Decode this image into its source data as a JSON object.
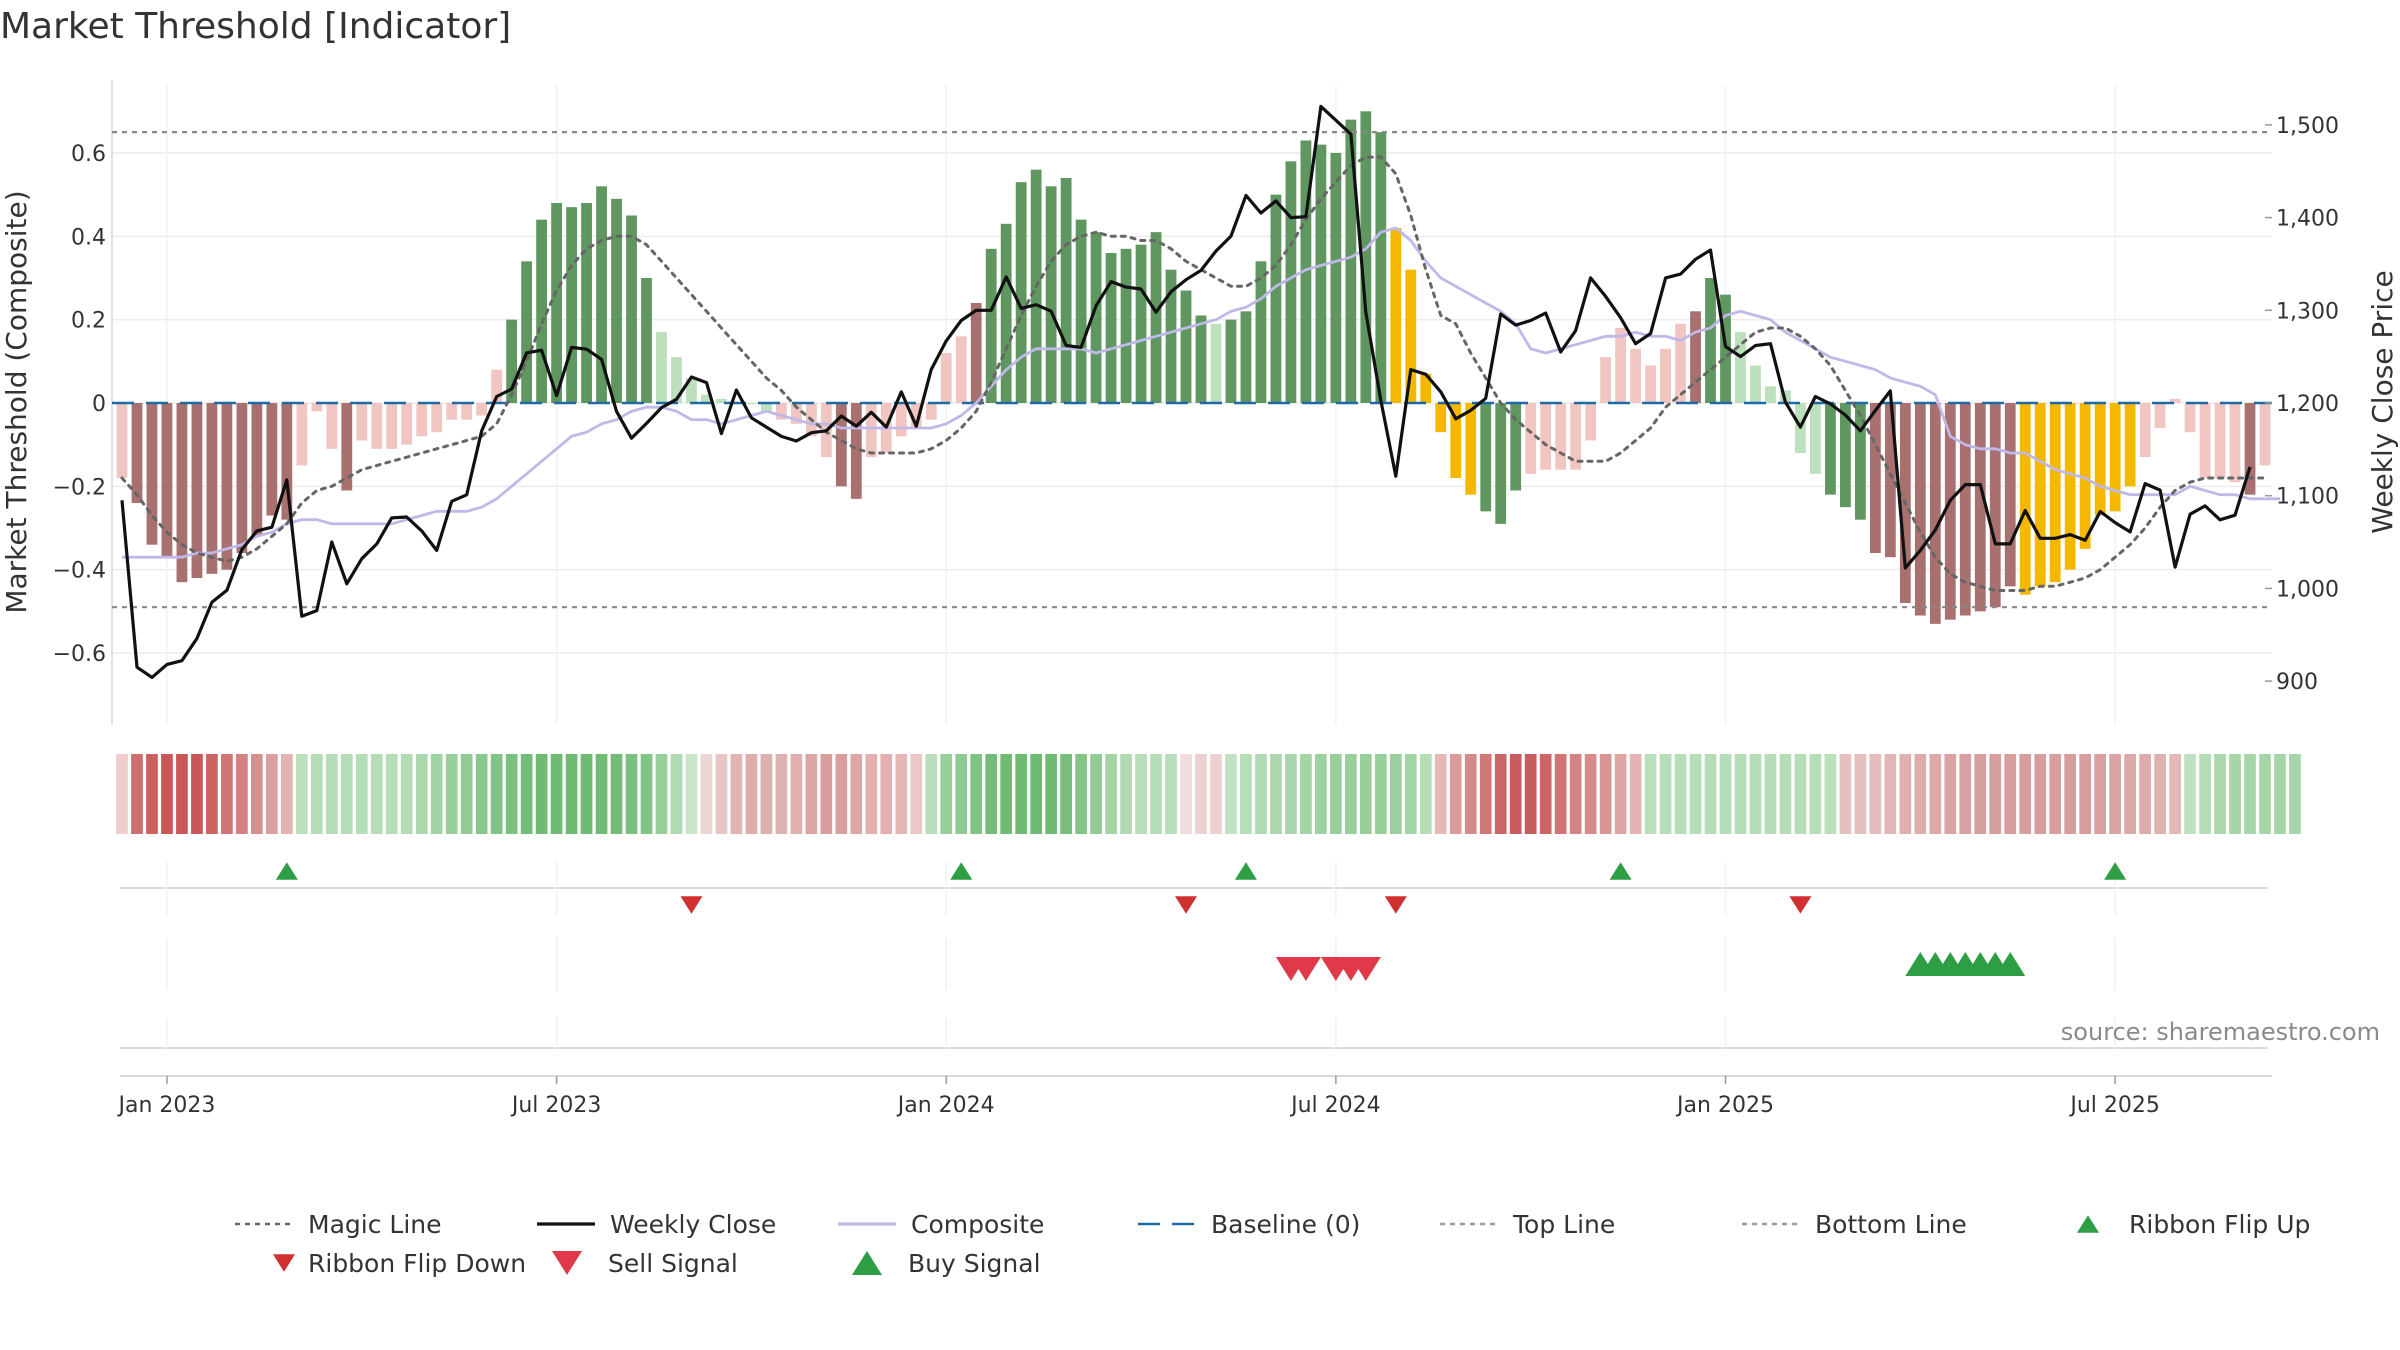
{
  "chart_data": {
    "type": "bar",
    "title": "Market Threshold [Indicator]",
    "ylabel_left": "Market Threshold (Composite)",
    "ylabel_right": "Weekly Close Price",
    "source": "source: sharemaestro.com",
    "ylim_left": [
      -0.78,
      0.78
    ],
    "ylim_right": [
      858,
      1535
    ],
    "left_ticks": [
      {
        "value": 0.6,
        "label": "0.6"
      },
      {
        "value": 0.4,
        "label": "0.4"
      },
      {
        "value": 0.2,
        "label": "0.2"
      },
      {
        "value": 0,
        "label": "0"
      },
      {
        "value": -0.2,
        "label": "−0.2"
      },
      {
        "value": -0.4,
        "label": "−0.4"
      },
      {
        "value": -0.6,
        "label": "−0.6"
      }
    ],
    "right_ticks": [
      {
        "value": 1500,
        "label": "1,500"
      },
      {
        "value": 1400,
        "label": "1,400"
      },
      {
        "value": 1300,
        "label": "1,300"
      },
      {
        "value": 1200,
        "label": "1,200"
      },
      {
        "value": 1100,
        "label": "1,100"
      },
      {
        "value": 1000,
        "label": "1,000"
      },
      {
        "value": 900,
        "label": "900"
      }
    ],
    "x_ticks": [
      {
        "week": 3,
        "label": "Jan 2023"
      },
      {
        "week": 29,
        "label": "Jul 2023"
      },
      {
        "week": 55,
        "label": "Jan 2024"
      },
      {
        "week": 81,
        "label": "Jul 2024"
      },
      {
        "week": 107,
        "label": "Jan 2025"
      },
      {
        "week": 133,
        "label": "Jul 2025"
      }
    ],
    "week_range": [
      0,
      143
    ],
    "top_line": 0.65,
    "bottom_line": -0.49,
    "baseline": 0,
    "composite_bars": [
      -0.18,
      -0.24,
      -0.34,
      -0.37,
      -0.43,
      -0.42,
      -0.41,
      -0.4,
      -0.36,
      -0.32,
      -0.27,
      -0.28,
      -0.15,
      -0.02,
      -0.11,
      -0.21,
      -0.09,
      -0.11,
      -0.11,
      -0.1,
      -0.08,
      -0.07,
      -0.04,
      -0.04,
      -0.03,
      0.08,
      0.2,
      0.34,
      0.44,
      0.48,
      0.47,
      0.48,
      0.52,
      0.49,
      0.45,
      0.3,
      0.17,
      0.11,
      0.06,
      0.02,
      0.01,
      0,
      0,
      -0.02,
      -0.04,
      -0.05,
      -0.08,
      -0.13,
      -0.2,
      -0.23,
      -0.13,
      -0.12,
      -0.08,
      -0.06,
      -0.04,
      0.12,
      0.16,
      0.24,
      0.37,
      0.43,
      0.53,
      0.56,
      0.52,
      0.54,
      0.44,
      0.41,
      0.36,
      0.37,
      0.38,
      0.41,
      0.32,
      0.27,
      0.21,
      0.19,
      0.2,
      0.22,
      0.34,
      0.5,
      0.58,
      0.63,
      0.62,
      0.6,
      0.68,
      0.7,
      0.65,
      0.42,
      0.32,
      0.07,
      -0.07,
      -0.18,
      -0.22,
      -0.26,
      -0.29,
      -0.21,
      -0.17,
      -0.16,
      -0.16,
      -0.16,
      -0.09,
      0.11,
      0.18,
      0.13,
      0.09,
      0.13,
      0.19,
      0.22,
      0.3,
      0.26,
      0.17,
      0.09,
      0.04,
      0.03,
      -0.12,
      -0.17,
      -0.22,
      -0.25,
      -0.28,
      -0.36,
      -0.37,
      -0.48,
      -0.51,
      -0.53,
      -0.52,
      -0.51,
      -0.5,
      -0.49,
      -0.44,
      -0.46,
      -0.44,
      -0.43,
      -0.4,
      -0.35,
      -0.27,
      -0.26,
      -0.2,
      -0.13,
      -0.06,
      0.01,
      -0.07,
      -0.18,
      -0.18,
      -0.19,
      -0.22,
      -0.15
    ],
    "bar_color_codes": "ddddddddddddddddddddddddddGGGGGGGGGGGGGGGGGGddddddddddddddGGGGGGGGGGGGGGGGGGGGGGGGGGGYYYYYYGGGddddddddddddGGGGGGGGGGGddddddddddYYYYYYYYdddddddddddddddGGGGGGGGG",
    "bar_colors": {
      "G": "#4f8c4f",
      "d": "#a06060",
      "Y": "#f5b800"
    },
    "weekly_close": [
      1095,
      915,
      904,
      918,
      922,
      946,
      985,
      998,
      1042,
      1062,
      1066,
      1117,
      970,
      976,
      1050,
      1005,
      1032,
      1048,
      1076,
      1077,
      1062,
      1041,
      1094,
      1101,
      1170,
      1207,
      1215,
      1254,
      1257,
      1208,
      1260,
      1258,
      1247,
      1191,
      1162,
      1178,
      1195,
      1204,
      1228,
      1222,
      1167,
      1214,
      1184,
      1174,
      1164,
      1159,
      1168,
      1170,
      1186,
      1175,
      1190,
      1174,
      1212,
      1175,
      1236,
      1267,
      1289,
      1300,
      1300,
      1336,
      1302,
      1306,
      1299,
      1262,
      1260,
      1305,
      1331,
      1325,
      1323,
      1298,
      1320,
      1333,
      1343,
      1364,
      1380,
      1424,
      1405,
      1418,
      1400,
      1401,
      1520,
      1505,
      1490,
      1298,
      1203,
      1121,
      1236,
      1231,
      1212,
      1183,
      1192,
      1205,
      1296,
      1284,
      1289,
      1297,
      1255,
      1278,
      1335,
      1315,
      1292,
      1264,
      1275,
      1335,
      1339,
      1355,
      1365,
      1261,
      1250,
      1262,
      1264,
      1201,
      1174,
      1207,
      1199,
      1187,
      1170,
      1192,
      1213,
      1022,
      1041,
      1063,
      1095,
      1112,
      1112,
      1048,
      1048,
      1084,
      1054,
      1054,
      1058,
      1052,
      1083,
      1071,
      1061,
      1113,
      1106,
      1023,
      1080,
      1089,
      1074,
      1079,
      1131
    ],
    "magic_line": [
      -0.18,
      -0.22,
      -0.27,
      -0.31,
      -0.34,
      -0.36,
      -0.37,
      -0.38,
      -0.37,
      -0.35,
      -0.32,
      -0.29,
      -0.24,
      -0.21,
      -0.2,
      -0.18,
      -0.16,
      -0.15,
      -0.14,
      -0.13,
      -0.12,
      -0.11,
      -0.1,
      -0.09,
      -0.08,
      -0.05,
      0.02,
      0.1,
      0.19,
      0.27,
      0.33,
      0.37,
      0.39,
      0.4,
      0.4,
      0.38,
      0.34,
      0.3,
      0.26,
      0.22,
      0.18,
      0.14,
      0.1,
      0.06,
      0.03,
      -0.01,
      -0.04,
      -0.07,
      -0.09,
      -0.11,
      -0.12,
      -0.12,
      -0.12,
      -0.12,
      -0.11,
      -0.09,
      -0.06,
      -0.02,
      0.05,
      0.13,
      0.21,
      0.28,
      0.34,
      0.38,
      0.4,
      0.41,
      0.4,
      0.4,
      0.39,
      0.39,
      0.37,
      0.34,
      0.32,
      0.3,
      0.28,
      0.28,
      0.3,
      0.33,
      0.38,
      0.44,
      0.49,
      0.53,
      0.57,
      0.59,
      0.59,
      0.55,
      0.45,
      0.32,
      0.21,
      0.19,
      0.12,
      0.06,
      0,
      -0.04,
      -0.07,
      -0.1,
      -0.12,
      -0.14,
      -0.14,
      -0.14,
      -0.12,
      -0.09,
      -0.06,
      -0.01,
      0.02,
      0.05,
      0.08,
      0.11,
      0.14,
      0.17,
      0.18,
      0.18,
      0.16,
      0.13,
      0.09,
      0.03,
      -0.03,
      -0.1,
      -0.17,
      -0.24,
      -0.31,
      -0.37,
      -0.41,
      -0.43,
      -0.44,
      -0.45,
      -0.45,
      -0.45,
      -0.44,
      -0.44,
      -0.43,
      -0.42,
      -0.4,
      -0.37,
      -0.34,
      -0.3,
      -0.25,
      -0.21,
      -0.19,
      -0.18,
      -0.18,
      -0.18,
      -0.18,
      -0.18
    ],
    "composite_line": [
      -0.37,
      -0.37,
      -0.37,
      -0.37,
      -0.37,
      -0.36,
      -0.36,
      -0.35,
      -0.34,
      -0.32,
      -0.31,
      -0.29,
      -0.28,
      -0.28,
      -0.29,
      -0.29,
      -0.29,
      -0.29,
      -0.29,
      -0.28,
      -0.27,
      -0.26,
      -0.26,
      -0.26,
      -0.25,
      -0.23,
      -0.2,
      -0.17,
      -0.14,
      -0.11,
      -0.08,
      -0.07,
      -0.05,
      -0.04,
      -0.02,
      -0.01,
      -0.01,
      -0.02,
      -0.04,
      -0.04,
      -0.05,
      -0.04,
      -0.03,
      -0.02,
      -0.03,
      -0.04,
      -0.05,
      -0.05,
      -0.06,
      -0.06,
      -0.06,
      -0.06,
      -0.06,
      -0.06,
      -0.06,
      -0.05,
      -0.03,
      0,
      0.04,
      0.08,
      0.11,
      0.13,
      0.13,
      0.13,
      0.13,
      0.12,
      0.13,
      0.14,
      0.15,
      0.16,
      0.17,
      0.18,
      0.19,
      0.2,
      0.22,
      0.23,
      0.25,
      0.28,
      0.3,
      0.32,
      0.33,
      0.34,
      0.35,
      0.37,
      0.41,
      0.42,
      0.39,
      0.34,
      0.3,
      0.28,
      0.26,
      0.24,
      0.22,
      0.19,
      0.13,
      0.12,
      0.13,
      0.14,
      0.15,
      0.16,
      0.16,
      0.17,
      0.16,
      0.16,
      0.15,
      0.17,
      0.18,
      0.21,
      0.22,
      0.21,
      0.2,
      0.17,
      0.15,
      0.13,
      0.11,
      0.1,
      0.09,
      0.08,
      0.06,
      0.05,
      0.04,
      0.02,
      -0.08,
      -0.1,
      -0.11,
      -0.11,
      -0.12,
      -0.12,
      -0.14,
      -0.16,
      -0.17,
      -0.18,
      -0.2,
      -0.21,
      -0.22,
      -0.22,
      -0.22,
      -0.22,
      -0.2,
      -0.21,
      -0.22,
      -0.22,
      -0.23,
      -0.23,
      -0.23
    ],
    "ribbon_colors": [
      "#f0cccc",
      "#cd6e6e",
      "#cb6060",
      "#c85858",
      "#c85858",
      "#c85858",
      "#cc6464",
      "#d07474",
      "#d38080",
      "#d78e8e",
      "#dc9f9f",
      "#e3b3b3",
      "#b9dfbb",
      "#b5ddb6",
      "#b5ddb6",
      "#b5ddb6",
      "#b5ddb6",
      "#b5ddb6",
      "#b5ddb6",
      "#b3dcb5",
      "#aad8ac",
      "#a0d3a3",
      "#98cf9b",
      "#91cb94",
      "#8ac78d",
      "#82c386",
      "#7ac07e",
      "#72bc77",
      "#6fbb74",
      "#6fbb74",
      "#6fbb74",
      "#6fbb74",
      "#6fbb74",
      "#74bd78",
      "#7ac07e",
      "#82c486",
      "#98cf9b",
      "#b0dab2",
      "#c8e5c9",
      "#ecd5d5",
      "#e8c6c6",
      "#e2b3b3",
      "#dfabab",
      "#ddb0b0",
      "#dfb2b2",
      "#e0b0b0",
      "#dba5a5",
      "#d89e9e",
      "#d99e9e",
      "#dea7a7",
      "#e2b0b0",
      "#e2b0b0",
      "#e4b6b6",
      "#eac8c8",
      "#b8dfba",
      "#98cf9b",
      "#8ec990",
      "#7fc283",
      "#74bd78",
      "#6fbb74",
      "#6fbb74",
      "#6fbb74",
      "#6fbb74",
      "#76be7a",
      "#84c587",
      "#92cb95",
      "#a2d4a4",
      "#b1dab3",
      "#b7ddb9",
      "#b5ddb6",
      "#b8dfba",
      "#f0dcdc",
      "#ecd1d1",
      "#eccfcf",
      "#c0e2c2",
      "#b5ddb6",
      "#b0dab2",
      "#acd8ae",
      "#a8d6aa",
      "#a3d4a6",
      "#9dd1a0",
      "#98cf9b",
      "#98cf9b",
      "#98cf9b",
      "#98cf9b",
      "#9bd09e",
      "#a3d4a6",
      "#b5ddb6",
      "#e6b9b9",
      "#dc9c9c",
      "#d58a8a",
      "#d07878",
      "#cc6666",
      "#c85c5c",
      "#c85c5c",
      "#cc6666",
      "#d07474",
      "#d48282",
      "#d68a8a",
      "#d99494",
      "#dea4a4",
      "#e4b4b4",
      "#b9dfbb",
      "#b5ddb6",
      "#b5ddb6",
      "#b5ddb6",
      "#b5ddb6",
      "#b5ddb6",
      "#b5ddb6",
      "#b5ddb6",
      "#b5ddb6",
      "#b5ddb6",
      "#b5ddb6",
      "#b5ddb6",
      "#b9dfbb",
      "#e6bfbf",
      "#e6bfbf",
      "#e4bcbc",
      "#e2b6b6",
      "#e0b0b0",
      "#deacac",
      "#dca8a8",
      "#daa4a4",
      "#d8a0a0",
      "#d79e9e",
      "#d79e9e",
      "#d79e9e",
      "#d79e9e",
      "#d79e9e",
      "#d79e9e",
      "#d79e9e",
      "#d79e9e",
      "#d8a0a0",
      "#daa4a4",
      "#dca8a8",
      "#deacac",
      "#e0b0b0",
      "#e4b8b8",
      "#bfe1c1",
      "#b5ddb6",
      "#aad8ac",
      "#a6d6a8",
      "#a6d6a8",
      "#a6d6a8",
      "#a6d6a8",
      "#a6d6a8"
    ],
    "ribbon_flip_up": [
      11,
      56,
      75,
      100,
      133
    ],
    "ribbon_flip_down": [
      38,
      71,
      85,
      112
    ],
    "sell_signals": [
      78,
      79,
      81,
      82,
      83
    ],
    "buy_signals": [
      120,
      121,
      122,
      123,
      124,
      125,
      126
    ],
    "legend": [
      {
        "label": "Magic Line",
        "kind": "dotted",
        "color": "#666666"
      },
      {
        "label": "Weekly Close",
        "kind": "solid",
        "color": "#111111"
      },
      {
        "label": "Composite",
        "kind": "solid",
        "color": "#bfb8e8"
      },
      {
        "label": "Baseline (0)",
        "kind": "dashed",
        "color": "#1f6aa5"
      },
      {
        "label": "Top Line",
        "kind": "dotted",
        "color": "#999999"
      },
      {
        "label": "Bottom Line",
        "kind": "dotted",
        "color": "#999999"
      },
      {
        "label": "Ribbon Flip Up",
        "kind": "tri-up",
        "color": "#2e9e45"
      },
      {
        "label": "Ribbon Flip Down",
        "kind": "tri-down",
        "color": "#d03030"
      },
      {
        "label": "Sell Signal",
        "kind": "tri-down-big",
        "color": "#e03a4a"
      },
      {
        "label": "Buy Signal",
        "kind": "tri-up-big",
        "color": "#2e9e45"
      }
    ]
  }
}
